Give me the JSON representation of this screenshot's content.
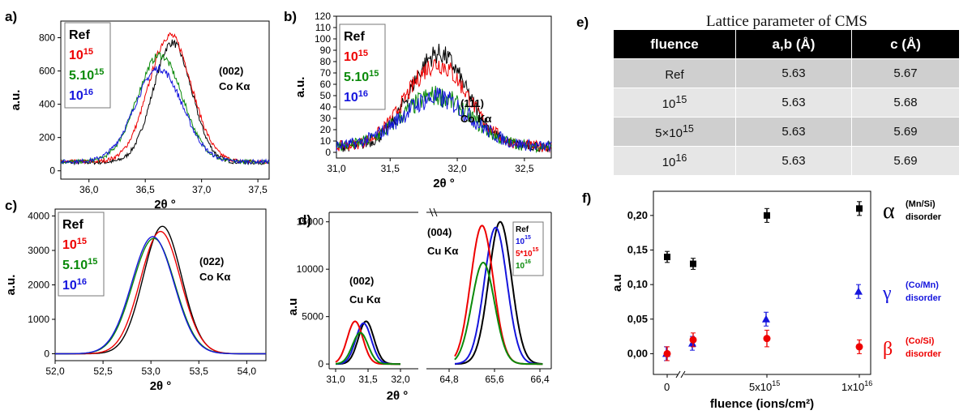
{
  "panel_letters": {
    "a": "a)",
    "b": "b)",
    "c": "c)",
    "d": "d)",
    "e": "e)",
    "f": "f)"
  },
  "colors": {
    "ref": "#000000",
    "e15": "#ee0000",
    "e5_15": "#0a8a0a",
    "e16": "#1515dd"
  },
  "table": {
    "title": "Lattice parameter of CMS",
    "headers": [
      "fluence",
      "a,b (Å)",
      "c (Å)"
    ],
    "rows": [
      {
        "fluence": "Ref",
        "fluence_sup": "",
        "ab": "5.63",
        "c": "5.67"
      },
      {
        "fluence": "10",
        "fluence_sup": "15",
        "ab": "5.63",
        "c": "5.68"
      },
      {
        "fluence": "5×10",
        "fluence_sup": "15",
        "ab": "5.63",
        "c": "5.69"
      },
      {
        "fluence": "10",
        "fluence_sup": "16",
        "ab": "5.63",
        "c": "5.69"
      }
    ]
  },
  "chart_data": [
    {
      "id": "a",
      "type": "line",
      "xlabel": "2θ °",
      "ylabel": "a.u.",
      "xlim": [
        35.75,
        37.6
      ],
      "ylim": [
        -50,
        900
      ],
      "xticks": [
        "36,0",
        "36,5",
        "37,0",
        "37,5"
      ],
      "xtick_vals": [
        36.0,
        36.5,
        37.0,
        37.5
      ],
      "yticks": [
        "0",
        "200",
        "400",
        "600",
        "800"
      ],
      "ytick_vals": [
        0,
        200,
        400,
        600,
        800
      ],
      "annotation": [
        "(002)",
        "Co Kα"
      ],
      "legend": [
        {
          "base": "Ref",
          "sup": "",
          "color": "#000000"
        },
        {
          "base": "10",
          "sup": "15",
          "color": "#ee0000"
        },
        {
          "base": "5.10",
          "sup": "15",
          "color": "#0a8a0a"
        },
        {
          "base": "10",
          "sup": "16",
          "color": "#1515dd"
        }
      ],
      "series": [
        {
          "name": "Ref",
          "color": "#000000",
          "center": 36.74,
          "height": 720,
          "width": 0.17,
          "base": 50
        },
        {
          "name": "10^15",
          "color": "#ee0000",
          "center": 36.72,
          "height": 760,
          "width": 0.19,
          "base": 55
        },
        {
          "name": "5.10^15",
          "color": "#0a8a0a",
          "center": 36.63,
          "height": 640,
          "width": 0.2,
          "base": 55
        },
        {
          "name": "10^16",
          "color": "#1515dd",
          "center": 36.62,
          "height": 560,
          "width": 0.21,
          "base": 55
        }
      ]
    },
    {
      "id": "b",
      "type": "line",
      "xlabel": "2θ °",
      "ylabel": "a.u.",
      "xlim": [
        31.1,
        32.7
      ],
      "ylim": [
        -5,
        120
      ],
      "xticks": [
        "31,0",
        "31,5",
        "32,0",
        "32,5"
      ],
      "xtick_vals": [
        31.0,
        31.5,
        32.0,
        32.5
      ],
      "yticks": [
        "0",
        "10",
        "20",
        "30",
        "40",
        "50",
        "60",
        "70",
        "80",
        "90",
        "100",
        "110",
        "120"
      ],
      "ytick_vals": [
        0,
        10,
        20,
        30,
        40,
        50,
        60,
        70,
        80,
        90,
        100,
        110,
        120
      ],
      "annotation": [
        "(111)",
        "Co Kα"
      ],
      "legend": [
        {
          "base": "Ref",
          "sup": "",
          "color": "#000000"
        },
        {
          "base": "10",
          "sup": "15",
          "color": "#ee0000"
        },
        {
          "base": "5.10",
          "sup": "15",
          "color": "#0a8a0a"
        },
        {
          "base": "10",
          "sup": "16",
          "color": "#1515dd"
        }
      ],
      "series": [
        {
          "name": "Ref",
          "color": "#000000",
          "center": 31.86,
          "height": 82,
          "width": 0.21,
          "base": 5
        },
        {
          "name": "10^15",
          "color": "#ee0000",
          "center": 31.85,
          "height": 73,
          "width": 0.23,
          "base": 5
        },
        {
          "name": "5.10^15",
          "color": "#0a8a0a",
          "center": 31.84,
          "height": 45,
          "width": 0.25,
          "base": 5
        },
        {
          "name": "10^16",
          "color": "#1515dd",
          "center": 31.84,
          "height": 43,
          "width": 0.26,
          "base": 5
        }
      ]
    },
    {
      "id": "c",
      "type": "line",
      "xlabel": "2θ °",
      "ylabel": "a.u.",
      "xlim": [
        52.0,
        54.2
      ],
      "ylim": [
        -200,
        4200
      ],
      "xticks": [
        "52,0",
        "52,5",
        "53,0",
        "53,5",
        "54,0"
      ],
      "xtick_vals": [
        52.0,
        52.5,
        53.0,
        53.5,
        54.0
      ],
      "yticks": [
        "0",
        "1000",
        "2000",
        "3000",
        "4000"
      ],
      "ytick_vals": [
        0,
        1000,
        2000,
        3000,
        4000
      ],
      "annotation": [
        "(022)",
        "Co Kα"
      ],
      "legend": [
        {
          "base": "Ref",
          "sup": "",
          "color": "#000000"
        },
        {
          "base": "10",
          "sup": "15",
          "color": "#ee0000"
        },
        {
          "base": "5.10",
          "sup": "15",
          "color": "#0a8a0a"
        },
        {
          "base": "10",
          "sup": "16",
          "color": "#1515dd"
        }
      ],
      "series": [
        {
          "name": "Ref",
          "color": "#000000",
          "center": 53.12,
          "height": 3700,
          "width": 0.2,
          "base": 0
        },
        {
          "name": "10^15",
          "color": "#ee0000",
          "center": 53.1,
          "height": 3550,
          "width": 0.21,
          "base": 0
        },
        {
          "name": "5.10^15",
          "color": "#0a8a0a",
          "center": 53.03,
          "height": 3350,
          "width": 0.22,
          "base": 0
        },
        {
          "name": "10^16",
          "color": "#1515dd",
          "center": 53.02,
          "height": 3400,
          "width": 0.22,
          "base": 0
        }
      ]
    },
    {
      "id": "d",
      "type": "line",
      "xlabel": "2θ °",
      "ylabel": "a.u",
      "xlim_left": [
        30.9,
        32.1
      ],
      "xlim_right": [
        64.6,
        66.6
      ],
      "ylim": [
        -500,
        16000
      ],
      "xticks_left": [
        "31,0",
        "31,5",
        "32,0"
      ],
      "xtick_vals_left": [
        31.0,
        31.5,
        32.0
      ],
      "xticks_right": [
        "64,8",
        "65,6",
        "66,4"
      ],
      "xtick_vals_right": [
        64.8,
        65.6,
        66.4
      ],
      "yticks": [
        "0",
        "5000",
        "10000",
        "15000"
      ],
      "ytick_vals": [
        0,
        5000,
        10000,
        15000
      ],
      "annotation_left": [
        "(002)",
        "Cu Kα"
      ],
      "annotation_right": [
        "(004)",
        "Cu Kα"
      ],
      "legend": [
        {
          "base": "Ref",
          "sup": "",
          "color": "#000000"
        },
        {
          "base": "10",
          "sup": "15",
          "color": "#1515dd"
        },
        {
          "base": "5*10",
          "sup": "15",
          "color": "#ee0000"
        },
        {
          "base": "10",
          "sup": "16",
          "color": "#0a8a0a"
        }
      ],
      "series": [
        {
          "name": "Ref",
          "color": "#000000",
          "left": {
            "center": 31.47,
            "height": 4500,
            "width": 0.12
          },
          "right": {
            "center": 65.7,
            "height": 15000,
            "width": 0.2
          }
        },
        {
          "name": "10^15",
          "color": "#1515dd",
          "left": {
            "center": 31.43,
            "height": 4300,
            "width": 0.12
          },
          "right": {
            "center": 65.62,
            "height": 14400,
            "width": 0.2
          }
        },
        {
          "name": "5*10^15",
          "color": "#ee0000",
          "left": {
            "center": 31.3,
            "height": 4500,
            "width": 0.12
          },
          "right": {
            "center": 65.38,
            "height": 14600,
            "width": 0.2
          }
        },
        {
          "name": "10^16",
          "color": "#0a8a0a",
          "left": {
            "center": 31.38,
            "height": 3300,
            "width": 0.12
          },
          "right": {
            "center": 65.4,
            "height": 10700,
            "width": 0.2
          }
        }
      ]
    },
    {
      "id": "f",
      "type": "scatter",
      "xlabel": "fluence (ions/cm²)",
      "ylabel": "a.u",
      "ylim": [
        -0.03,
        0.235
      ],
      "yticks": [
        "0,00",
        "0,05",
        "0,10",
        "0,15",
        "0,20"
      ],
      "ytick_vals": [
        0,
        0.05,
        0.1,
        0.15,
        0.2
      ],
      "xticks": [
        "0",
        "5x10",
        "1x10"
      ],
      "xtick_sups": [
        "",
        "15",
        "16"
      ],
      "series": [
        {
          "name": "α",
          "label": "(Mn/Si)",
          "label2": "disorder",
          "color": "#000000",
          "marker": "square",
          "points": [
            {
              "x": "0",
              "y": 0.14,
              "err": 0.008
            },
            {
              "x": "1.2x10^15",
              "y": 0.13,
              "err": 0.008
            },
            {
              "x": "5x10^15",
              "y": 0.2,
              "err": 0.01
            },
            {
              "x": "1x10^16",
              "y": 0.21,
              "err": 0.01
            }
          ]
        },
        {
          "name": "γ",
          "label": "(Co/Mn)",
          "label2": "disorder",
          "color": "#1515dd",
          "marker": "triangle",
          "points": [
            {
              "x": "0",
              "y": 0.0,
              "err": 0.01
            },
            {
              "x": "1.2x10^15",
              "y": 0.015,
              "err": 0.01
            },
            {
              "x": "5x10^15",
              "y": 0.05,
              "err": 0.01
            },
            {
              "x": "1x10^16",
              "y": 0.09,
              "err": 0.01
            }
          ]
        },
        {
          "name": "β",
          "label": "(Co/Si)",
          "label2": "disorder",
          "color": "#ee0000",
          "marker": "circle",
          "points": [
            {
              "x": "0",
              "y": 0.0,
              "err": 0.01
            },
            {
              "x": "1.2x10^15",
              "y": 0.02,
              "err": 0.01
            },
            {
              "x": "5x10^15",
              "y": 0.022,
              "err": 0.012
            },
            {
              "x": "1x10^16",
              "y": 0.01,
              "err": 0.01
            }
          ]
        }
      ]
    }
  ]
}
